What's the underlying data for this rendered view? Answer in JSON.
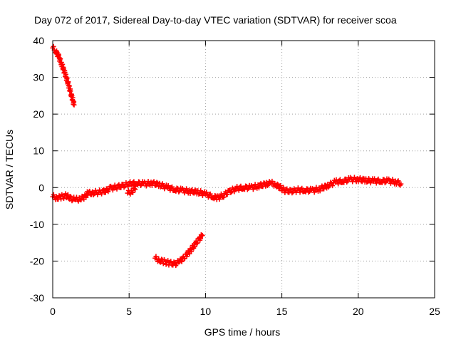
{
  "chart_data": {
    "type": "scatter",
    "title": "Day 072 of 2017, Sidereal Day-to-day VTEC variation (SDTVAR) for receiver scoa",
    "xlabel": "GPS time / hours",
    "ylabel": "SDTVAR / TECUs",
    "xlim": [
      0,
      25
    ],
    "ylim": [
      -30,
      40
    ],
    "x_ticks": [
      0,
      5,
      10,
      15,
      20,
      25
    ],
    "y_ticks": [
      40,
      30,
      20,
      10,
      0,
      -10,
      -20,
      -30
    ],
    "x_tick_labels": [
      "0",
      "5",
      "10",
      "15",
      "20",
      "25"
    ],
    "y_tick_labels": [
      "40",
      "30",
      "20",
      "10",
      "0",
      "-10",
      "-20",
      "-30"
    ],
    "grid": true,
    "marker": "+",
    "color": "#ff0000",
    "series": [
      {
        "name": "segment-1",
        "points": [
          [
            0.0,
            38.0
          ],
          [
            0.2,
            37.2
          ],
          [
            0.4,
            35.5
          ],
          [
            0.6,
            33.5
          ],
          [
            0.8,
            31.0
          ],
          [
            1.0,
            28.5
          ],
          [
            1.2,
            25.5
          ],
          [
            1.4,
            22.5
          ]
        ]
      },
      {
        "name": "segment-2",
        "points": [
          [
            0.0,
            -2.5
          ],
          [
            0.3,
            -2.8
          ],
          [
            0.6,
            -2.5
          ],
          [
            0.9,
            -2.2
          ],
          [
            1.2,
            -3.0
          ],
          [
            1.5,
            -3.3
          ],
          [
            1.8,
            -3.0
          ],
          [
            2.1,
            -2.5
          ],
          [
            2.3,
            -1.5
          ],
          [
            2.6,
            -1.5
          ],
          [
            3.0,
            -1.3
          ],
          [
            3.4,
            -1.0
          ],
          [
            3.8,
            -0.2
          ],
          [
            4.2,
            0.2
          ],
          [
            4.6,
            0.5
          ],
          [
            5.0,
            1.0
          ],
          [
            5.5,
            1.2
          ],
          [
            6.0,
            1.0
          ],
          [
            6.5,
            1.2
          ],
          [
            7.0,
            0.8
          ],
          [
            7.5,
            0.0
          ],
          [
            8.0,
            -0.5
          ],
          [
            8.5,
            -0.8
          ],
          [
            9.0,
            -1.0
          ],
          [
            9.5,
            -1.2
          ],
          [
            10.0,
            -1.8
          ],
          [
            10.5,
            -2.5
          ],
          [
            10.8,
            -2.8
          ],
          [
            11.2,
            -2.0
          ],
          [
            11.6,
            -1.0
          ],
          [
            12.0,
            -0.3
          ],
          [
            12.5,
            0.0
          ],
          [
            13.0,
            0.0
          ],
          [
            13.5,
            0.5
          ],
          [
            14.0,
            1.0
          ],
          [
            14.3,
            1.2
          ],
          [
            14.6,
            0.8
          ],
          [
            14.9,
            0.0
          ],
          [
            15.2,
            -0.8
          ],
          [
            15.6,
            -1.0
          ],
          [
            16.0,
            -0.7
          ],
          [
            16.5,
            -0.7
          ],
          [
            17.0,
            -0.8
          ],
          [
            17.5,
            -0.3
          ],
          [
            18.0,
            0.5
          ],
          [
            18.5,
            1.5
          ],
          [
            19.0,
            1.8
          ],
          [
            19.5,
            2.2
          ],
          [
            20.0,
            2.2
          ],
          [
            20.5,
            2.0
          ],
          [
            21.0,
            1.8
          ],
          [
            21.5,
            1.8
          ],
          [
            22.0,
            1.8
          ],
          [
            22.5,
            1.5
          ],
          [
            22.8,
            1.0
          ]
        ]
      },
      {
        "name": "segment-3",
        "points": [
          [
            4.9,
            -1.5
          ],
          [
            5.2,
            -1.0
          ],
          [
            5.4,
            -0.5
          ]
        ]
      },
      {
        "name": "segment-4",
        "points": [
          [
            6.7,
            -19.2
          ],
          [
            7.0,
            -19.8
          ],
          [
            7.3,
            -20.2
          ],
          [
            7.6,
            -20.5
          ],
          [
            8.0,
            -20.8
          ],
          [
            8.3,
            -20.2
          ],
          [
            8.6,
            -19.0
          ],
          [
            9.0,
            -17.2
          ],
          [
            9.3,
            -15.5
          ],
          [
            9.6,
            -14.0
          ],
          [
            9.8,
            -13.0
          ]
        ]
      }
    ]
  }
}
